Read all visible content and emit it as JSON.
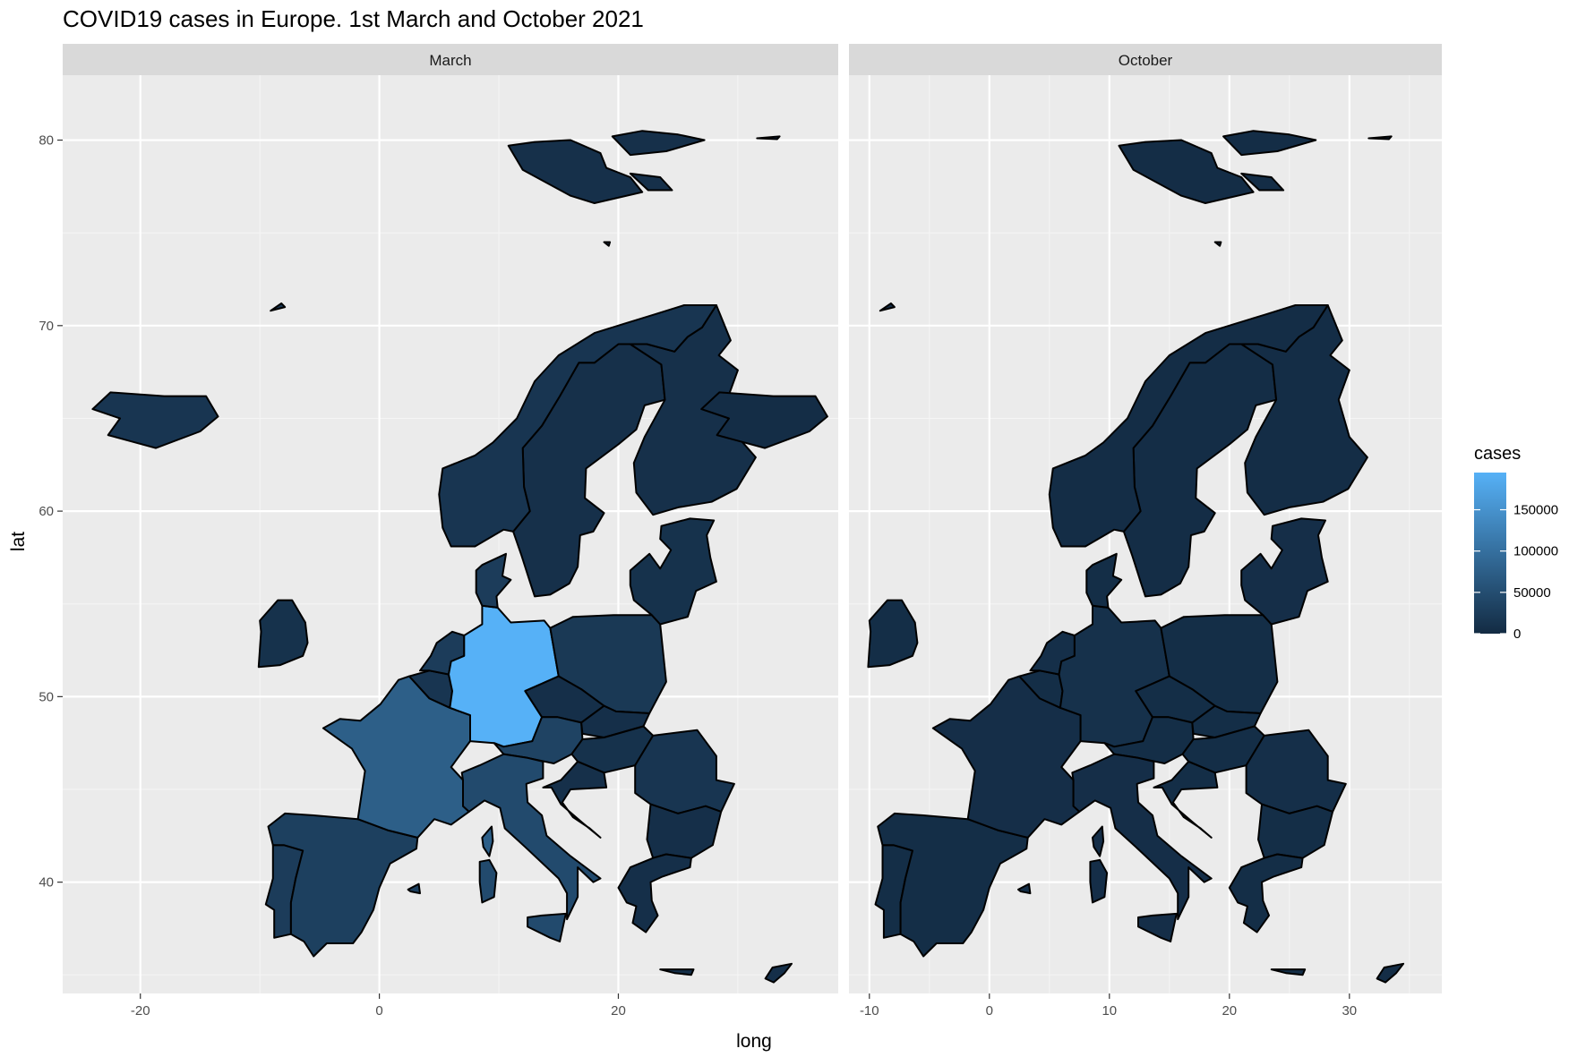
{
  "title": "COVID19 cases in Europe. 1st March and October 2021",
  "x_axis_title": "long",
  "y_axis_title": "lat",
  "legend": {
    "title": "cases",
    "breaks": [
      "150000",
      "100000",
      "50000",
      "0"
    ],
    "break_values": [
      150000,
      100000,
      50000,
      0
    ],
    "range": [
      0,
      195000
    ],
    "low_color": "#132B43",
    "high_color": "#56B1F7"
  },
  "y_ticks": [
    "80",
    "70",
    "60",
    "50",
    "40"
  ],
  "y_tick_values": [
    80,
    70,
    60,
    50,
    40
  ],
  "panels": [
    {
      "label": "March",
      "x_ticks": [
        "-20",
        "0",
        "20"
      ],
      "x_tick_values": [
        -20,
        0,
        20
      ],
      "xlim": [
        -26.5,
        38.4
      ],
      "ylim": [
        34.0,
        83.5
      ],
      "country_cases": {
        "germany": 195000,
        "france": 75000,
        "italy": 45000,
        "spain": 30000,
        "poland": 20000,
        "czechia": 6000,
        "austria": 35000,
        "netherlands": 25000,
        "belgium": 15000,
        "portugal": 25000,
        "romania": 15000,
        "hungary": 10000,
        "greece": 6000,
        "sweden": 8000,
        "finland": 8000,
        "norway": 15000,
        "denmark": 25000,
        "ireland": 10000,
        "iceland": 15000,
        "baltics": 10000,
        "bulgaria": 6000,
        "croatia": 8000,
        "slovakia": 6000,
        "uk": 10000,
        "svalbard": 8000,
        "cyprus": 6000
      }
    },
    {
      "label": "October",
      "x_ticks": [
        "-10",
        "0",
        "10",
        "20",
        "30"
      ],
      "x_tick_values": [
        -10,
        0,
        10,
        20,
        30
      ],
      "xlim": [
        -11.7,
        37.7
      ],
      "ylim": [
        34.0,
        83.5
      ],
      "country_cases": {
        "germany": 9000,
        "france": 5000,
        "italy": 5000,
        "spain": 4000,
        "poland": 4000,
        "czechia": 4000,
        "austria": 4000,
        "netherlands": 6000,
        "belgium": 4000,
        "portugal": 4000,
        "romania": 6000,
        "hungary": 4000,
        "greece": 4000,
        "sweden": 3000,
        "finland": 3000,
        "norway": 3000,
        "denmark": 4000,
        "ireland": 4000,
        "iceland": 3000,
        "baltics": 5000,
        "bulgaria": 4000,
        "croatia": 4000,
        "slovakia": 4000,
        "uk": 4000,
        "svalbard": 3000,
        "cyprus": 3000
      }
    }
  ]
}
